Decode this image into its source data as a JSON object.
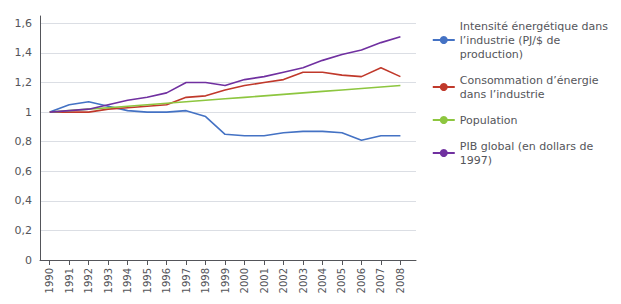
{
  "chart_data": {
    "type": "line",
    "x": [
      1990,
      1991,
      1992,
      1993,
      1994,
      1995,
      1996,
      1997,
      1998,
      1999,
      2000,
      2001,
      2002,
      2003,
      2004,
      2005,
      2006,
      2007,
      2008
    ],
    "xlim": [
      1989.5,
      2008.8
    ],
    "xticks": [
      1990,
      1991,
      1992,
      1993,
      1994,
      1995,
      1996,
      1997,
      1998,
      1999,
      2000,
      2001,
      2002,
      2003,
      2004,
      2005,
      2006,
      2007,
      2008
    ],
    "ylim": [
      0,
      1.65
    ],
    "yticks": [
      0,
      {
        "value": 0.2,
        "label": "0,2"
      },
      {
        "value": 0.4,
        "label": "0,4"
      },
      {
        "value": 0.6,
        "label": "0,6"
      },
      {
        "value": 0.8,
        "label": "0,8"
      },
      1,
      {
        "value": 1.2,
        "label": "1,2"
      },
      {
        "value": 1.4,
        "label": "1,4"
      },
      {
        "value": 1.6,
        "label": "1,6"
      }
    ],
    "grid": true,
    "legend": "right",
    "series": [
      {
        "name": "Intensité énergétique dans\nl’industrie (PJ/$ de\nproduction)",
        "color": "#4472C4",
        "values": [
          1.0,
          1.05,
          1.07,
          1.04,
          1.01,
          1.0,
          1.0,
          1.01,
          0.97,
          0.85,
          0.84,
          0.84,
          0.86,
          0.87,
          0.87,
          0.86,
          0.81,
          0.84,
          0.84
        ]
      },
      {
        "name": "Consommation d’énergie\ndans l’industrie",
        "color": "#C0392B",
        "values": [
          1.0,
          1.0,
          1.0,
          1.02,
          1.03,
          1.04,
          1.05,
          1.1,
          1.11,
          1.15,
          1.18,
          1.2,
          1.22,
          1.27,
          1.27,
          1.25,
          1.24,
          1.3,
          1.24
        ]
      },
      {
        "name": "Population",
        "color": "#8DC63F",
        "values": [
          1.0,
          1.01,
          1.02,
          1.03,
          1.04,
          1.05,
          1.06,
          1.07,
          1.08,
          1.09,
          1.1,
          1.11,
          1.12,
          1.13,
          1.14,
          1.15,
          1.16,
          1.17,
          1.18
        ]
      },
      {
        "name": "PIB global (en dollars de\n1997)",
        "color": "#7030A0",
        "values": [
          1.0,
          1.01,
          1.02,
          1.05,
          1.08,
          1.1,
          1.13,
          1.2,
          1.2,
          1.18,
          1.22,
          1.24,
          1.27,
          1.3,
          1.35,
          1.39,
          1.42,
          1.47,
          1.51
        ]
      }
    ]
  }
}
